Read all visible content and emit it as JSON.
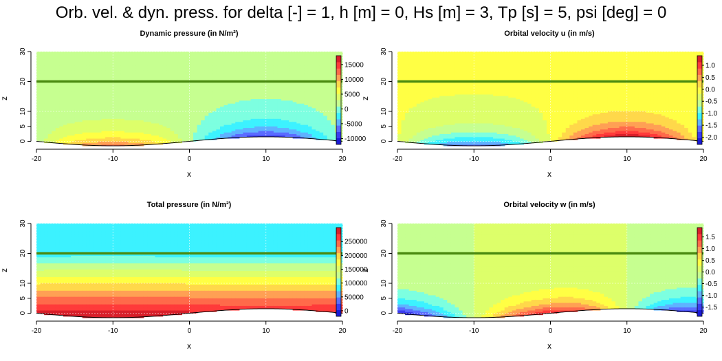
{
  "figure": {
    "title": "Orb. vel. & dyn. press. for delta [-] = 1, h [m] = 0, Hs [m] = 3, Tp [s] = 5, psi [deg] = 0"
  },
  "colors": {
    "seabed_line": "#000000",
    "water_level_line": "#4a8a10",
    "grid": "#ffffff",
    "palette": [
      "#1a1ad6",
      "#3b3bf0",
      "#5b6cff",
      "#5fb2ff",
      "#3cf2ff",
      "#7dffe0",
      "#c6ff90",
      "#ddff6a",
      "#ffff44",
      "#ffd84a",
      "#ffa054",
      "#ff6a4a",
      "#ff3a3a",
      "#d81f2a"
    ]
  },
  "chart_data": [
    {
      "id": "dynamic-pressure",
      "type": "heatmap",
      "title": "Dynamic pressure (in N/m²)",
      "xlabel": "x",
      "ylabel": "z",
      "xlim": [
        -20,
        20
      ],
      "ylim": [
        -1.5,
        30
      ],
      "xticks": [
        -20,
        -10,
        0,
        10,
        20
      ],
      "yticks": [
        0,
        5,
        10,
        20,
        30
      ],
      "grid": true,
      "field": "pressure",
      "value_range": [
        -12000,
        18000
      ],
      "surface_level": 20,
      "seabed": {
        "amplitude": 1.5,
        "wavelength": 40,
        "crest_x": 10
      },
      "colorbar": {
        "ticks": [
          15000,
          10000,
          5000,
          0,
          -5000,
          -10000
        ],
        "range": [
          -12000,
          18000
        ]
      },
      "colorbar_ticks_text": [
        "15000",
        "10000",
        "5000",
        "0",
        "-5000",
        "-10000"
      ]
    },
    {
      "id": "orbital-velocity-u",
      "type": "heatmap",
      "title": "Orbital velocity u (in m/s)",
      "xlabel": "x",
      "ylabel": "z",
      "xlim": [
        -20,
        20
      ],
      "ylim": [
        -1.5,
        30
      ],
      "xticks": [
        -20,
        -10,
        0,
        10,
        20
      ],
      "yticks": [
        0,
        5,
        10,
        20,
        30
      ],
      "grid": true,
      "field": "u",
      "value_range": [
        -2.3,
        1.4
      ],
      "surface_level": 20,
      "seabed": {
        "amplitude": 1.5,
        "wavelength": 40,
        "crest_x": 10
      },
      "colorbar": {
        "ticks": [
          1.0,
          0.5,
          0.0,
          -0.5,
          -1.0,
          -1.5,
          -2.0
        ],
        "range": [
          -2.3,
          1.4
        ]
      },
      "colorbar_ticks_text": [
        "1.0",
        "0.5",
        "0.0",
        "-0.5",
        "-1.0",
        "-1.5",
        "-2.0"
      ]
    },
    {
      "id": "total-pressure",
      "type": "heatmap",
      "title": "Total pressure (in N/m²)",
      "xlabel": "x",
      "ylabel": "z",
      "xlim": [
        -20,
        20
      ],
      "ylim": [
        -1.5,
        30
      ],
      "xticks": [
        -20,
        -10,
        0,
        10,
        20
      ],
      "yticks": [
        0,
        5,
        10,
        20,
        30
      ],
      "grid": true,
      "field": "total",
      "value_range": [
        -20000,
        300000
      ],
      "surface_level": 20,
      "seabed": {
        "amplitude": 1.5,
        "wavelength": 40,
        "crest_x": 10
      },
      "colorbar": {
        "ticks": [
          250000,
          200000,
          150000,
          100000,
          50000,
          0
        ],
        "range": [
          -20000,
          300000
        ]
      },
      "colorbar_ticks_text": [
        "250000",
        "200000",
        "150000",
        "100000",
        "50000",
        "0"
      ]
    },
    {
      "id": "orbital-velocity-w",
      "type": "heatmap",
      "title": "Orbital velocity w (in m/s)",
      "xlabel": "x",
      "ylabel": "z",
      "xlim": [
        -20,
        20
      ],
      "ylim": [
        -1.5,
        30
      ],
      "xticks": [
        -20,
        -10,
        0,
        10,
        20
      ],
      "yticks": [
        0,
        5,
        10,
        20,
        30
      ],
      "grid": true,
      "field": "w",
      "value_range": [
        -1.9,
        1.9
      ],
      "surface_level": 20,
      "seabed": {
        "amplitude": 1.5,
        "wavelength": 40,
        "crest_x": 10
      },
      "colorbar": {
        "ticks": [
          1.5,
          1.0,
          0.5,
          0.0,
          -0.5,
          -1.0,
          -1.5
        ],
        "range": [
          -1.9,
          1.9
        ]
      },
      "colorbar_ticks_text": [
        "1.5",
        "1.0",
        "0.5",
        "0.0",
        "-0.5",
        "-1.0",
        "-1.5"
      ]
    }
  ]
}
